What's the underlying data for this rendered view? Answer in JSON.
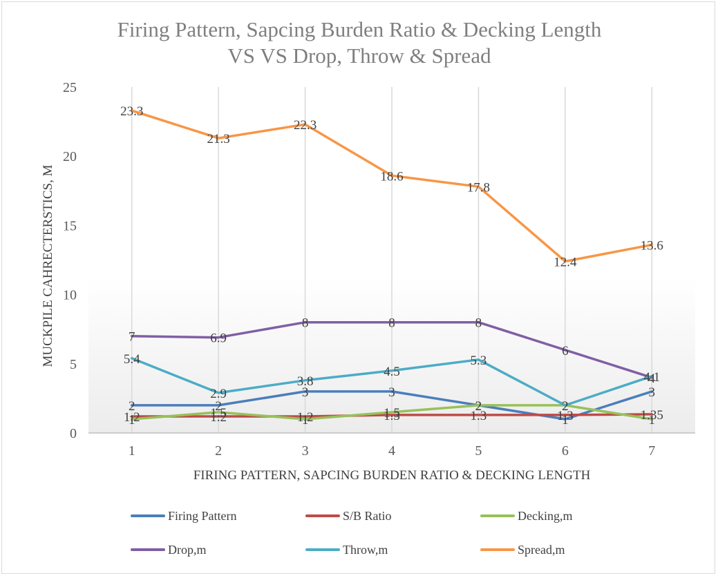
{
  "chart_data": {
    "type": "line",
    "title_line1": "Firing Pattern, Sapcing Burden Ratio & Decking Length",
    "title_line2": "VS VS Drop, Throw & Spread",
    "xlabel": "FIRING PATTERN, SAPCING BURDEN RATIO & DECKING LENGTH",
    "ylabel": "MUCKPILE CAHRECTERSTICS, M",
    "categories": [
      "1",
      "2",
      "3",
      "4",
      "5",
      "6",
      "7"
    ],
    "ylim": [
      0,
      25
    ],
    "yticks": [
      "0",
      "5",
      "10",
      "15",
      "20",
      "25"
    ],
    "grid": "vertical",
    "legend_position": "bottom",
    "series": [
      {
        "name": "Firing Pattern",
        "color": "#4a7ebb",
        "values": [
          2,
          2,
          3,
          3,
          2,
          1,
          3
        ],
        "labels": [
          "2",
          "2",
          "3",
          "3",
          "2",
          "1",
          "3"
        ]
      },
      {
        "name": "S/B Ratio",
        "color": "#be4b48",
        "values": [
          1.2,
          1.2,
          1.2,
          1.3,
          1.3,
          1.3,
          1.35
        ],
        "labels": [
          "1.2",
          "1.2",
          "1.2",
          "1.3",
          "1.3",
          "1.3",
          "1.35"
        ]
      },
      {
        "name": "Decking,m",
        "color": "#98c05a",
        "values": [
          1,
          1.5,
          1,
          1.5,
          2,
          2,
          1
        ],
        "labels": [
          "1",
          "1.5",
          "1",
          "1.5",
          "2",
          "2",
          "1"
        ]
      },
      {
        "name": "Drop,m",
        "color": "#7f5fa5",
        "values": [
          7,
          6.9,
          8,
          8,
          8,
          6,
          4
        ],
        "labels": [
          "7",
          "6.9",
          "8",
          "8",
          "8",
          "6",
          "4"
        ]
      },
      {
        "name": "Throw,m",
        "color": "#4bacc6",
        "values": [
          5.4,
          2.9,
          3.8,
          4.5,
          5.3,
          2,
          4.1
        ],
        "labels": [
          "5.4",
          "2.9",
          "3.8",
          "4.5",
          "5.3",
          "2",
          "4.1"
        ]
      },
      {
        "name": "Spread,m",
        "color": "#f79646",
        "values": [
          23.3,
          21.3,
          22.3,
          18.6,
          17.8,
          12.4,
          13.6
        ],
        "labels": [
          "23.3",
          "21.3",
          "22.3",
          "18.6",
          "17.8",
          "12.4",
          "13.6"
        ]
      }
    ]
  }
}
